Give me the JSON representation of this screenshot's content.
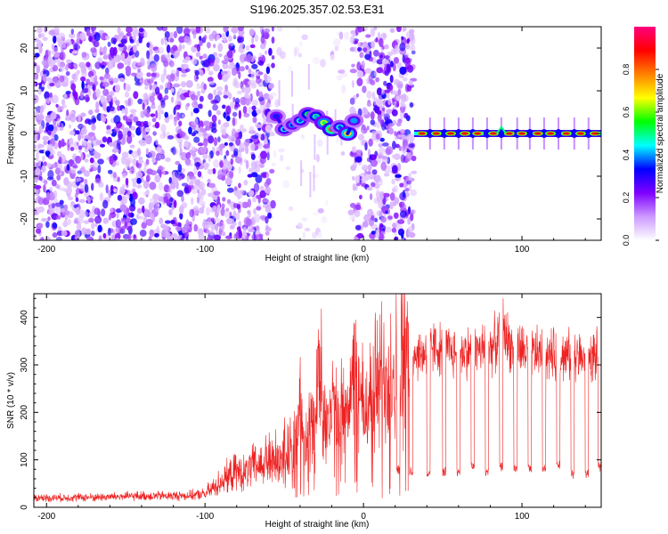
{
  "figure": {
    "title": "S196.2025.357.02.53.E31"
  },
  "chart_data": [
    {
      "type": "heatmap",
      "xlabel": "Height of straight line (km)",
      "ylabel": "Frequency (Hz)",
      "xlim": [
        -208,
        150
      ],
      "ylim": [
        -25,
        25
      ],
      "xticks": [
        -200,
        -100,
        0,
        100
      ],
      "yticks": [
        -20,
        -10,
        0,
        10,
        20
      ],
      "colorbar": {
        "label": "Normalized spectral amplitude",
        "range": [
          0,
          1
        ],
        "ticks": [
          "0.0",
          "0.2",
          "0.4",
          "0.6",
          "0.8"
        ],
        "colors": [
          "#ffffff",
          "#cc99ff",
          "#7f00ff",
          "#0000ff",
          "#00ffff",
          "#00ff00",
          "#ffff00",
          "#ff8000",
          "#ff0000",
          "#ff0080"
        ]
      },
      "noise_regions": [
        {
          "x": [
            -208,
            -57
          ],
          "amplitude": 0.25
        },
        {
          "x": [
            -7,
            32
          ],
          "amplitude": 0.25
        },
        {
          "x": [
            -57,
            -7
          ],
          "amplitude": 0.07
        }
      ],
      "signal_track": [
        {
          "x": -55,
          "y": 4,
          "amplitude": 0.35
        },
        {
          "x": -50,
          "y": 1,
          "amplitude": 0.45
        },
        {
          "x": -45,
          "y": 2,
          "amplitude": 0.4
        },
        {
          "x": -40,
          "y": 3,
          "amplitude": 0.45
        },
        {
          "x": -35,
          "y": 4.5,
          "amplitude": 0.55
        },
        {
          "x": -30,
          "y": 4,
          "amplitude": 0.5
        },
        {
          "x": -25,
          "y": 2.5,
          "amplitude": 0.65
        },
        {
          "x": -20,
          "y": 1,
          "amplitude": 0.8
        },
        {
          "x": -15,
          "y": 1.5,
          "amplitude": 0.45
        },
        {
          "x": -10,
          "y": 0,
          "amplitude": 0.7
        },
        {
          "x": -6,
          "y": 3,
          "amplitude": 0.4
        }
      ],
      "carrier": {
        "x_start": 32,
        "x_end": 150,
        "frequency_hz": 0,
        "bright_centers": [
          37,
          46,
          55,
          64,
          72,
          82,
          92,
          100,
          110,
          118,
          128,
          137,
          146
        ],
        "notch_centers": [
          42,
          51,
          60,
          69,
          78,
          87,
          97,
          105,
          114,
          123,
          133,
          142
        ],
        "bump": {
          "x": 88,
          "y": 1.5
        }
      }
    },
    {
      "type": "line",
      "xlabel": "Height of straight line (km)",
      "ylabel": "SNR (10 * v/v)",
      "xlim": [
        -208,
        150
      ],
      "ylim": [
        0,
        450
      ],
      "xticks": [
        -200,
        -100,
        0,
        100
      ],
      "yticks": [
        0,
        100,
        200,
        300,
        400
      ],
      "color": "#ee2222",
      "series": [
        {
          "name": "SNR",
          "x": [
            -208,
            -200,
            -190,
            -180,
            -170,
            -160,
            -150,
            -140,
            -130,
            -120,
            -110,
            -100,
            -95,
            -90,
            -85,
            -80,
            -75,
            -70,
            -65,
            -60,
            -55,
            -50,
            -45,
            -42,
            -40,
            -35,
            -30,
            -28,
            -25,
            -22,
            -20,
            -15,
            -10,
            -5,
            0,
            5,
            10,
            15,
            20,
            25,
            30,
            35,
            40,
            45,
            50,
            60,
            70,
            80,
            85,
            88,
            90,
            95,
            100,
            110,
            120,
            130,
            140,
            150
          ],
          "y": [
            20,
            20,
            20,
            21,
            21,
            22,
            23,
            24,
            24,
            24,
            25,
            28,
            40,
            55,
            65,
            75,
            70,
            85,
            90,
            100,
            105,
            110,
            120,
            150,
            200,
            150,
            190,
            300,
            220,
            170,
            200,
            180,
            230,
            260,
            200,
            240,
            270,
            280,
            300,
            320,
            330,
            320,
            330,
            340,
            330,
            325,
            330,
            335,
            350,
            390,
            360,
            330,
            330,
            325,
            320,
            320,
            315,
            320
          ]
        }
      ],
      "dips": [
        {
          "x": 22,
          "y": 70
        },
        {
          "x": 30,
          "y": 65
        },
        {
          "x": 41,
          "y": 60
        },
        {
          "x": 51,
          "y": 65
        },
        {
          "x": 60,
          "y": 65
        },
        {
          "x": 69,
          "y": 75
        },
        {
          "x": 78,
          "y": 65
        },
        {
          "x": 87,
          "y": 75
        },
        {
          "x": 96,
          "y": 70
        },
        {
          "x": 105,
          "y": 70
        },
        {
          "x": 114,
          "y": 75
        },
        {
          "x": 123,
          "y": 80
        },
        {
          "x": 132,
          "y": 60
        },
        {
          "x": 141,
          "y": 60
        },
        {
          "x": 149,
          "y": 75
        }
      ]
    }
  ]
}
